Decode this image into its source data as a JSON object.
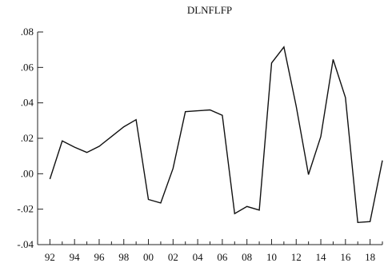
{
  "chart_data": {
    "type": "line",
    "title": "DLNFLFP",
    "xlabel": "",
    "ylabel": "",
    "x": [
      1992,
      1993,
      1994,
      1995,
      1996,
      1997,
      1998,
      1999,
      2000,
      2001,
      2002,
      2003,
      2004,
      2005,
      2006,
      2007,
      2008,
      2009,
      2010,
      2011,
      2012,
      2013,
      2014,
      2015,
      2016,
      2017,
      2018,
      2019
    ],
    "series": [
      {
        "name": "",
        "values": [
          -0.003,
          0.0185,
          0.015,
          0.012,
          0.0155,
          0.021,
          0.0265,
          0.0305,
          -0.0145,
          -0.0165,
          0.003,
          0.035,
          0.0355,
          0.036,
          0.033,
          -0.0225,
          -0.0185,
          -0.0205,
          0.0625,
          0.0715,
          0.038,
          -0.0005,
          0.021,
          0.0645,
          0.043,
          -0.0275,
          -0.027,
          0.0075
        ]
      }
    ],
    "xlim": [
      1991,
      2019
    ],
    "ylim": [
      -0.04,
      0.08
    ],
    "y_ticks": [
      {
        "value": 0.08,
        "label": ".08"
      },
      {
        "value": 0.06,
        "label": ".06"
      },
      {
        "value": 0.04,
        "label": ".04"
      },
      {
        "value": 0.02,
        "label": ".02"
      },
      {
        "value": 0.0,
        "label": ".00"
      },
      {
        "value": -0.02,
        "label": "-.02"
      },
      {
        "value": -0.04,
        "label": "-.04"
      }
    ],
    "x_ticks": [
      {
        "value": 1992,
        "label": "92"
      },
      {
        "value": 1994,
        "label": "94"
      },
      {
        "value": 1996,
        "label": "96"
      },
      {
        "value": 1998,
        "label": "98"
      },
      {
        "value": 2000,
        "label": "00"
      },
      {
        "value": 2002,
        "label": "02"
      },
      {
        "value": 2004,
        "label": "04"
      },
      {
        "value": 2006,
        "label": "06"
      },
      {
        "value": 2008,
        "label": "08"
      },
      {
        "value": 2010,
        "label": "10"
      },
      {
        "value": 2012,
        "label": "12"
      },
      {
        "value": 2014,
        "label": "14"
      },
      {
        "value": 2016,
        "label": "16"
      },
      {
        "value": 2018,
        "label": "18"
      }
    ],
    "grid": false,
    "line_color": "#111111"
  }
}
